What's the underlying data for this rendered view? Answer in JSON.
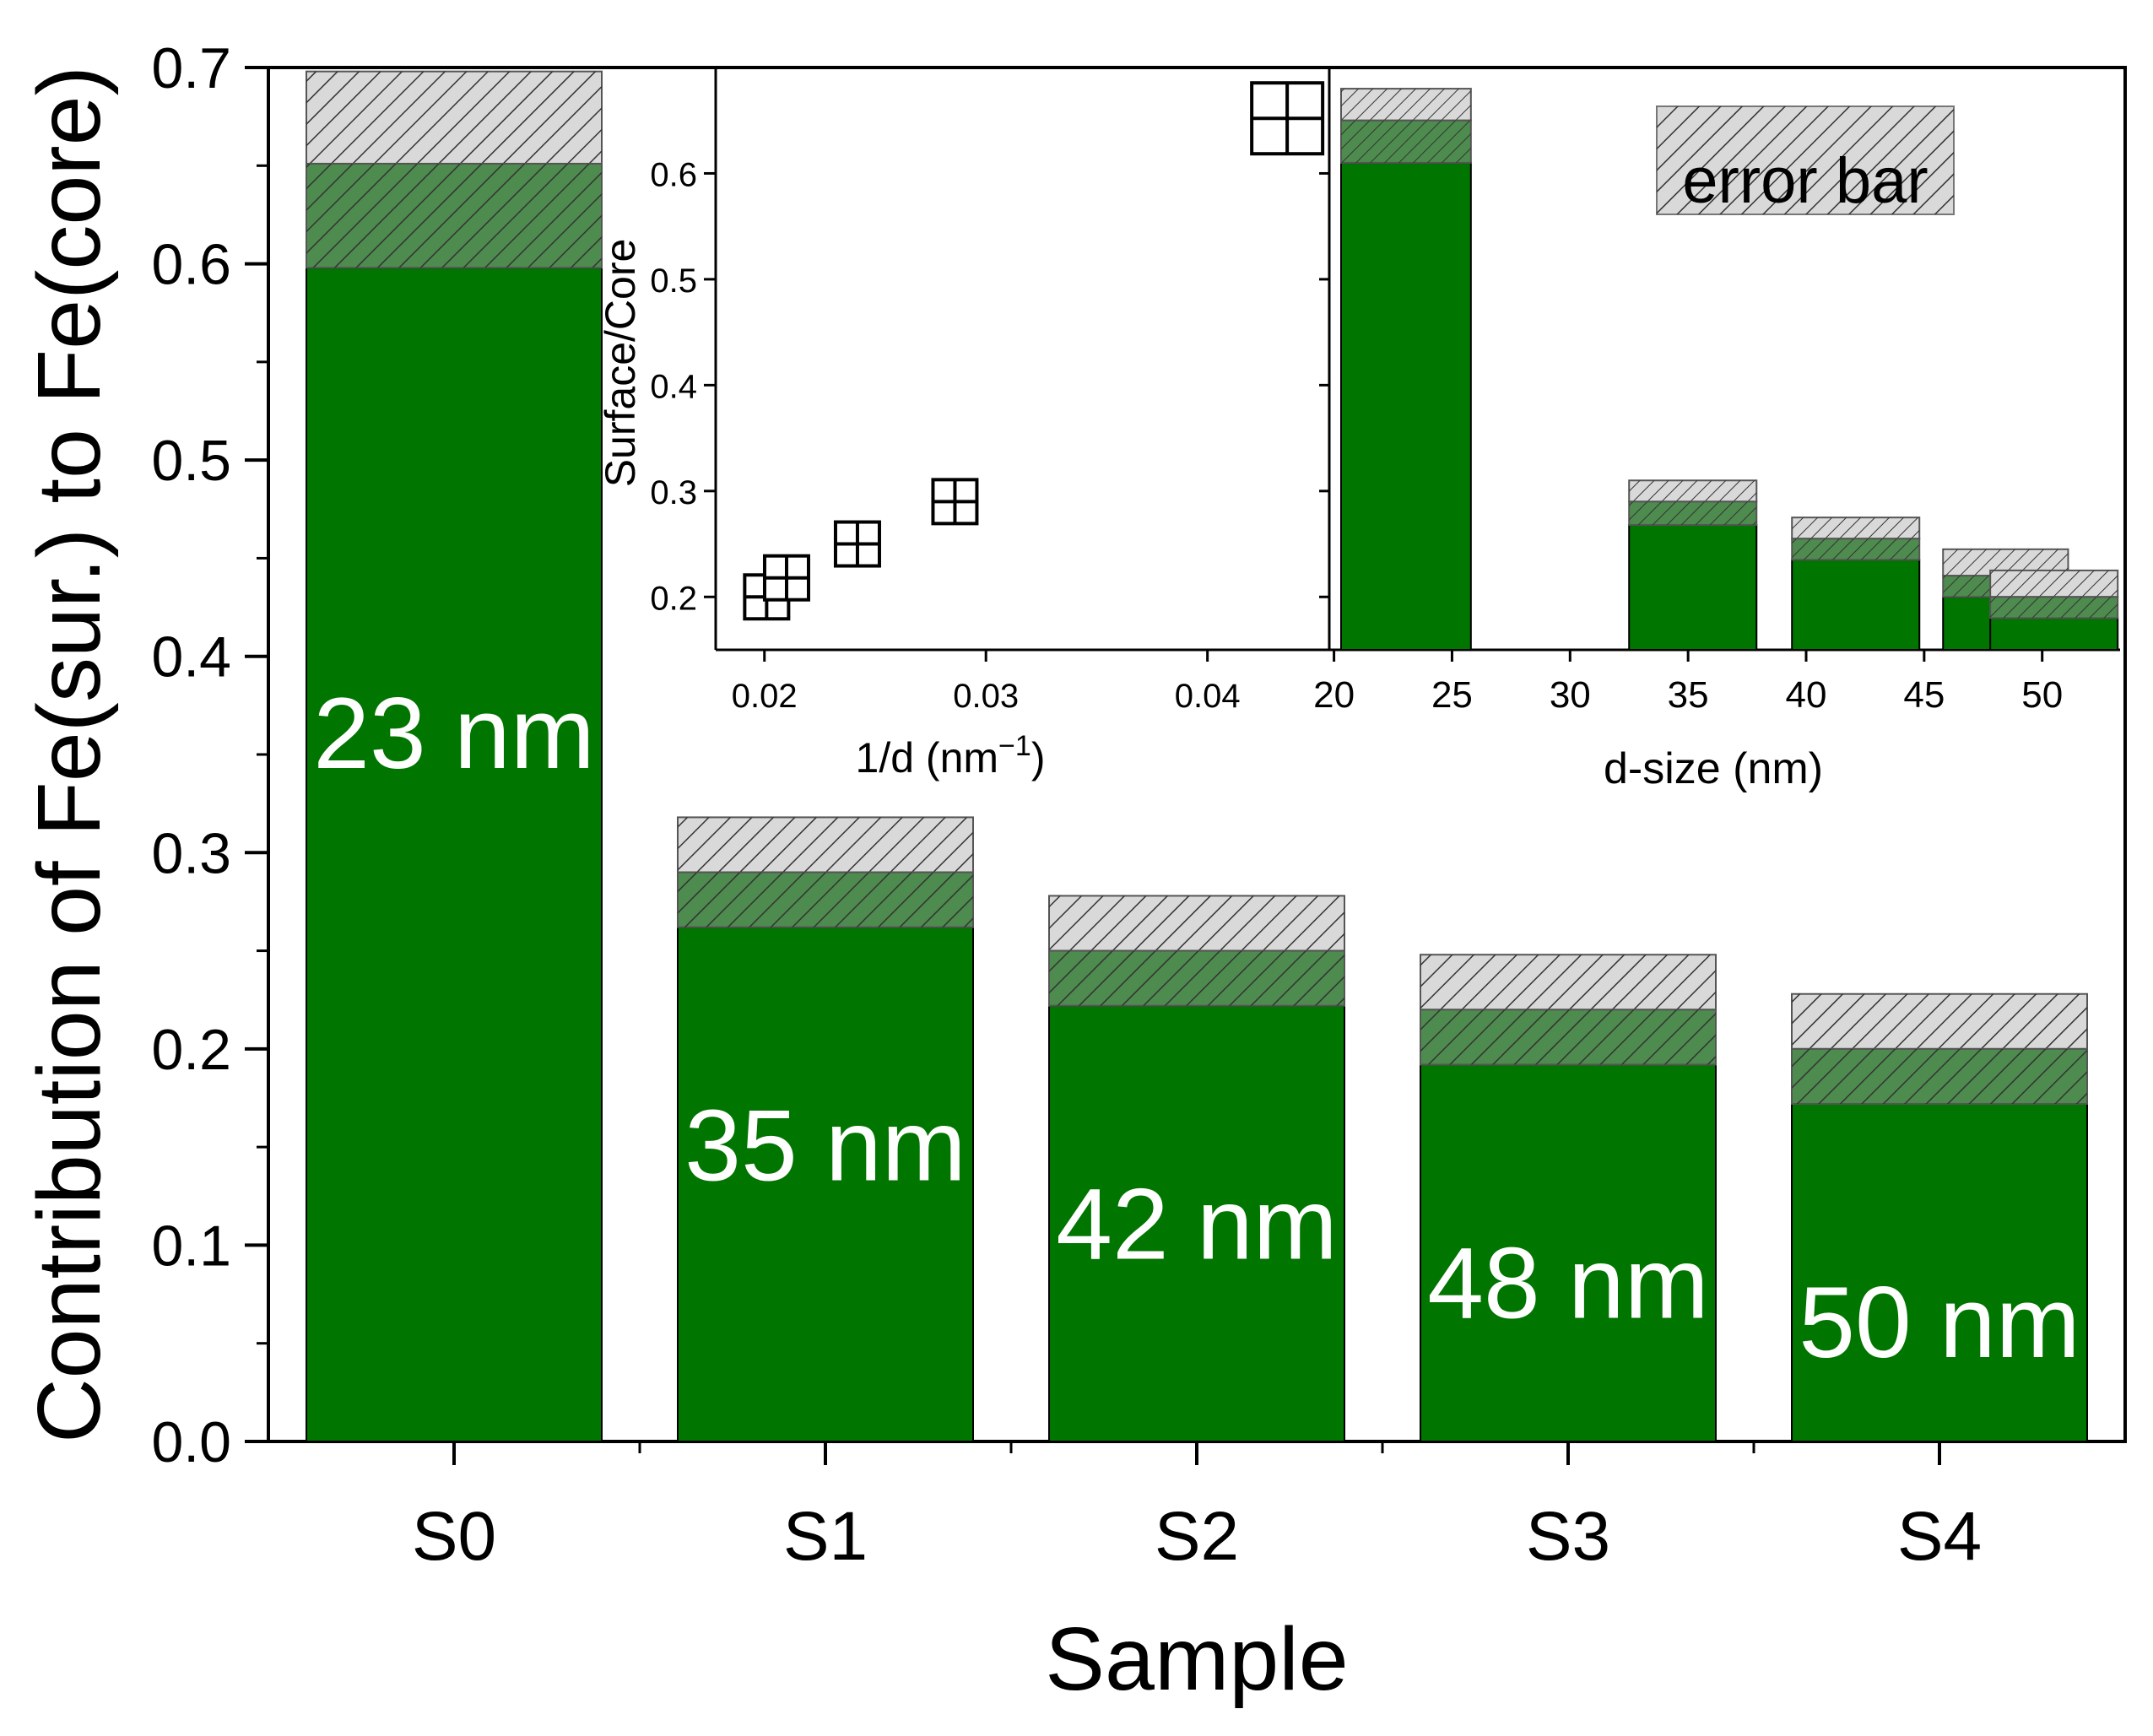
{
  "colors": {
    "bar_fill": "#007500",
    "bar_stroke": "#000000",
    "error_dark": "#4e8b4e",
    "error_light": "#d9d9d9",
    "hatch_line": "#333333",
    "bar_label": "#ffffff",
    "axis": "#000000"
  },
  "chart_data": [
    {
      "type": "bar",
      "title": "",
      "xlabel": "Sample",
      "ylabel": "Contribution of Fe(sur.) to Fe(core)",
      "categories": [
        "S0",
        "S1",
        "S2",
        "S3",
        "S4"
      ],
      "values": [
        0.598,
        0.262,
        0.222,
        0.192,
        0.172
      ],
      "error_inner_top": [
        0.651,
        0.29,
        0.25,
        0.22,
        0.2
      ],
      "error_outer_top": [
        0.698,
        0.318,
        0.278,
        0.248,
        0.228
      ],
      "bar_labels": [
        "23 nm",
        "35 nm",
        "42 nm",
        "48 nm",
        "50 nm"
      ],
      "ylim": [
        0,
        0.7
      ],
      "yticks": [
        "0.0",
        "0.1",
        "0.2",
        "0.3",
        "0.4",
        "0.5",
        "0.6",
        "0.7"
      ],
      "grid": false
    },
    {
      "type": "scatter",
      "title": "",
      "xlabel": "1/d (nm",
      "xlabel_superscript": "−1",
      "xlabel_end": ")",
      "ylabel": "Surface/Core",
      "points": [
        {
          "x": 0.0201,
          "y": 0.2
        },
        {
          "x": 0.021,
          "y": 0.218
        },
        {
          "x": 0.0242,
          "y": 0.25
        },
        {
          "x": 0.0286,
          "y": 0.29
        },
        {
          "x": 0.0436,
          "y": 0.652
        }
      ],
      "xlim": [
        0.0178,
        0.0455
      ],
      "ylim": [
        0.15,
        0.7
      ],
      "xticks": [
        "0.02",
        "0.03",
        "0.04"
      ],
      "yticks": [
        "0.2",
        "0.3",
        "0.4",
        "0.5",
        "0.6"
      ],
      "marker": "square-cross"
    },
    {
      "type": "bar",
      "title": "",
      "xlabel": "d-size (nm)",
      "legend": {
        "label": "error bar",
        "placement": "top-right"
      },
      "bars": [
        {
          "x_start": 20.3,
          "x_end": 25.8,
          "value": 0.61,
          "error_inner_top": 0.65,
          "error_outer_top": 0.68
        },
        {
          "x_start": 32.5,
          "x_end": 37.9,
          "value": 0.268,
          "error_inner_top": 0.29,
          "error_outer_top": 0.31
        },
        {
          "x_start": 39.4,
          "x_end": 44.8,
          "value": 0.235,
          "error_inner_top": 0.255,
          "error_outer_top": 0.275
        },
        {
          "x_start": 45.8,
          "x_end": 51.1,
          "value": 0.2,
          "error_inner_top": 0.22,
          "error_outer_top": 0.245
        },
        {
          "x_start": 47.8,
          "x_end": 53.2,
          "value": 0.18,
          "error_inner_top": 0.2,
          "error_outer_top": 0.225
        }
      ],
      "xlim": [
        19.8,
        53.3
      ],
      "ylim": [
        0.15,
        0.7
      ],
      "xticks": [
        "20",
        "25",
        "30",
        "35",
        "40",
        "45",
        "50"
      ]
    }
  ]
}
